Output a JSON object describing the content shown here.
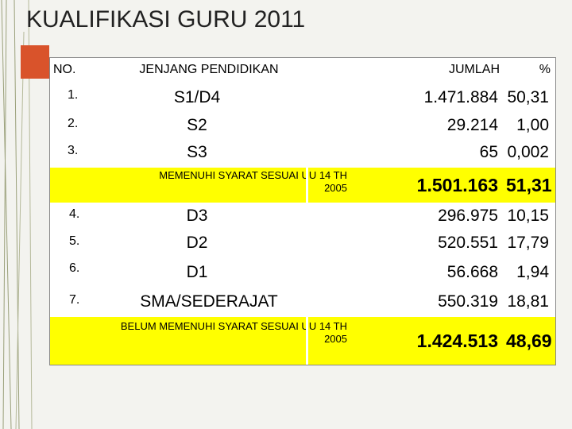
{
  "title": "KUALIFIKASI GURU 2011",
  "table": {
    "headers": {
      "no": "NO.",
      "jenjang": "JENJANG PENDIDIKAN",
      "jumlah": "JUMLAH",
      "persen": "%"
    },
    "rows": [
      {
        "no": "1.",
        "jenjang": "S1/D4",
        "jumlah": "1.471.884",
        "persen": "50,31"
      },
      {
        "no": "2.",
        "jenjang": "S2",
        "jumlah": "29.214",
        "persen": "1,00"
      },
      {
        "no": "3.",
        "jenjang": "S3",
        "jumlah": "65",
        "persen": "0,002"
      },
      {
        "no": "",
        "jenjang": "MEMENUHI SYARAT SESUAI UU 14 TH 2005",
        "jumlah": "1.501.163",
        "persen": "51,31",
        "summary": true
      },
      {
        "no": "4.",
        "jenjang": "D3",
        "jumlah": "296.975",
        "persen": "10,15"
      },
      {
        "no": "5.",
        "jenjang": "D2",
        "jumlah": "520.551",
        "persen": "17,79"
      },
      {
        "no": "6.",
        "jenjang": "D1",
        "jumlah": "56.668",
        "persen": "1,94"
      },
      {
        "no": "7.",
        "jenjang": "SMA/SEDERAJAT",
        "jumlah": "550.319",
        "persen": "18,81"
      },
      {
        "no": "",
        "jenjang": "BELUM MEMENUHI SYARAT SESUAI UU 14 TH 2005",
        "jumlah": "1.424.513",
        "persen": "48,69",
        "summary": true
      }
    ]
  },
  "colors": {
    "highlight": "#ffff00",
    "accent": "#d9532b",
    "background": "#f3f3ef"
  }
}
